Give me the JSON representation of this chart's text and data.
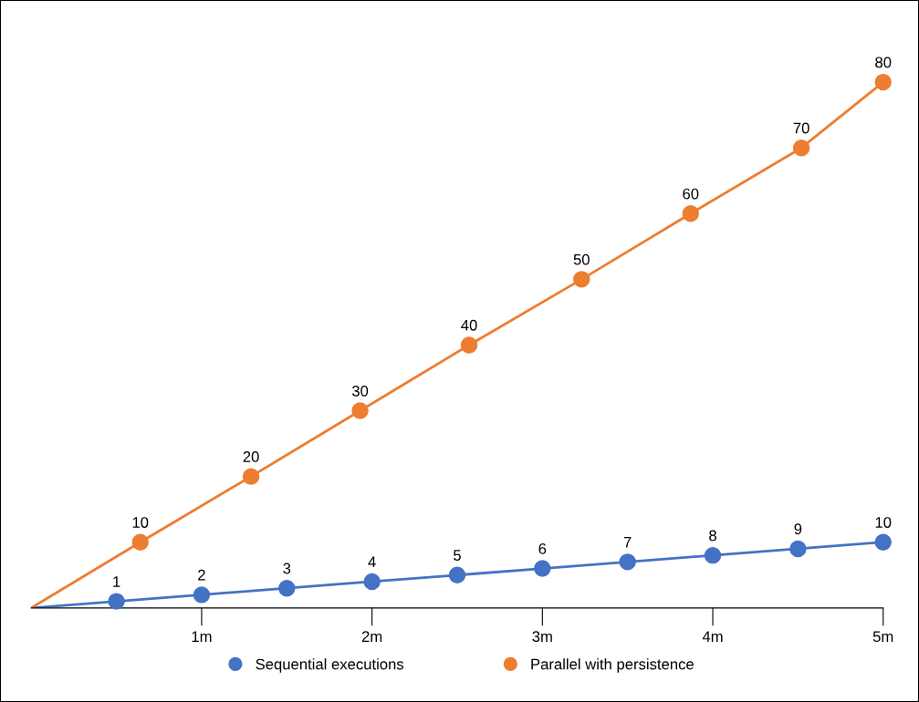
{
  "chart_data": {
    "type": "line",
    "xlim": [
      0,
      5
    ],
    "xticks": [
      {
        "value": 1,
        "label": "1m"
      },
      {
        "value": 2,
        "label": "2m"
      },
      {
        "value": 3,
        "label": "3m"
      },
      {
        "value": 4,
        "label": "4m"
      },
      {
        "value": 5,
        "label": "5m"
      }
    ],
    "tick_labels": "x",
    "grid": false,
    "legend": "bottom",
    "marker": "circle",
    "line_style": "solid",
    "series": [
      {
        "name": "Sequential executions",
        "color": "#4472c4",
        "x": [
          0,
          0.5,
          1,
          1.5,
          2,
          2.5,
          3,
          3.5,
          4,
          4.5,
          5
        ],
        "values": [
          0,
          1,
          2,
          3,
          4,
          5,
          6,
          7,
          8,
          9,
          10
        ],
        "value_labels": [
          null,
          "1",
          "2",
          "3",
          "4",
          "5",
          "6",
          "7",
          "8",
          "9",
          "10"
        ]
      },
      {
        "name": "Parallel with persistence",
        "color": "#ed7d31",
        "x": [
          0,
          0.64,
          1.29,
          1.93,
          2.57,
          3.23,
          3.87,
          4.52,
          5
        ],
        "values": [
          0,
          10,
          20,
          30,
          40,
          50,
          60,
          70,
          80
        ],
        "value_labels": [
          null,
          "10",
          "20",
          "30",
          "40",
          "50",
          "60",
          "70",
          "80"
        ]
      }
    ]
  }
}
